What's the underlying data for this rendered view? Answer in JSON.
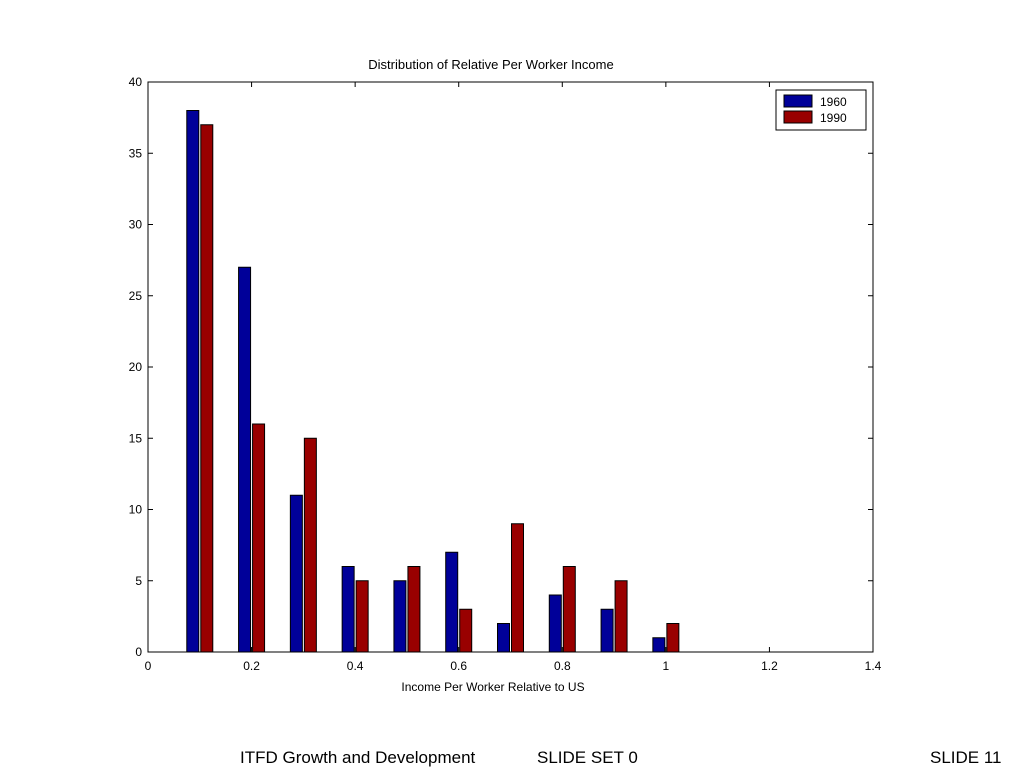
{
  "chart_data": {
    "type": "bar",
    "title": "Distribution of Relative Per Worker Income",
    "xlabel": "Income Per Worker Relative to US",
    "ylabel": "",
    "xlim": [
      0,
      1.4
    ],
    "ylim": [
      0,
      40
    ],
    "x_ticks": [
      "0",
      "0.2",
      "0.4",
      "0.6",
      "0.8",
      "1",
      "1.2",
      "1.4"
    ],
    "y_ticks": [
      "0",
      "5",
      "10",
      "15",
      "20",
      "25",
      "30",
      "35",
      "40"
    ],
    "x": [
      0.1,
      0.2,
      0.3,
      0.4,
      0.5,
      0.6,
      0.7,
      0.8,
      0.9,
      1.0
    ],
    "series": [
      {
        "name": "1960",
        "color": "#000099",
        "values": [
          38,
          27,
          11,
          6,
          5,
          7,
          2,
          4,
          3,
          1
        ]
      },
      {
        "name": "1990",
        "color": "#990000",
        "values": [
          37,
          16,
          15,
          5,
          6,
          3,
          9,
          6,
          5,
          2
        ]
      }
    ],
    "legend_position": "top-right",
    "grid": false
  },
  "footer": {
    "course": "ITFD Growth and Development",
    "slide_set": "SLIDE SET 0",
    "slide_number": "SLIDE 11"
  }
}
